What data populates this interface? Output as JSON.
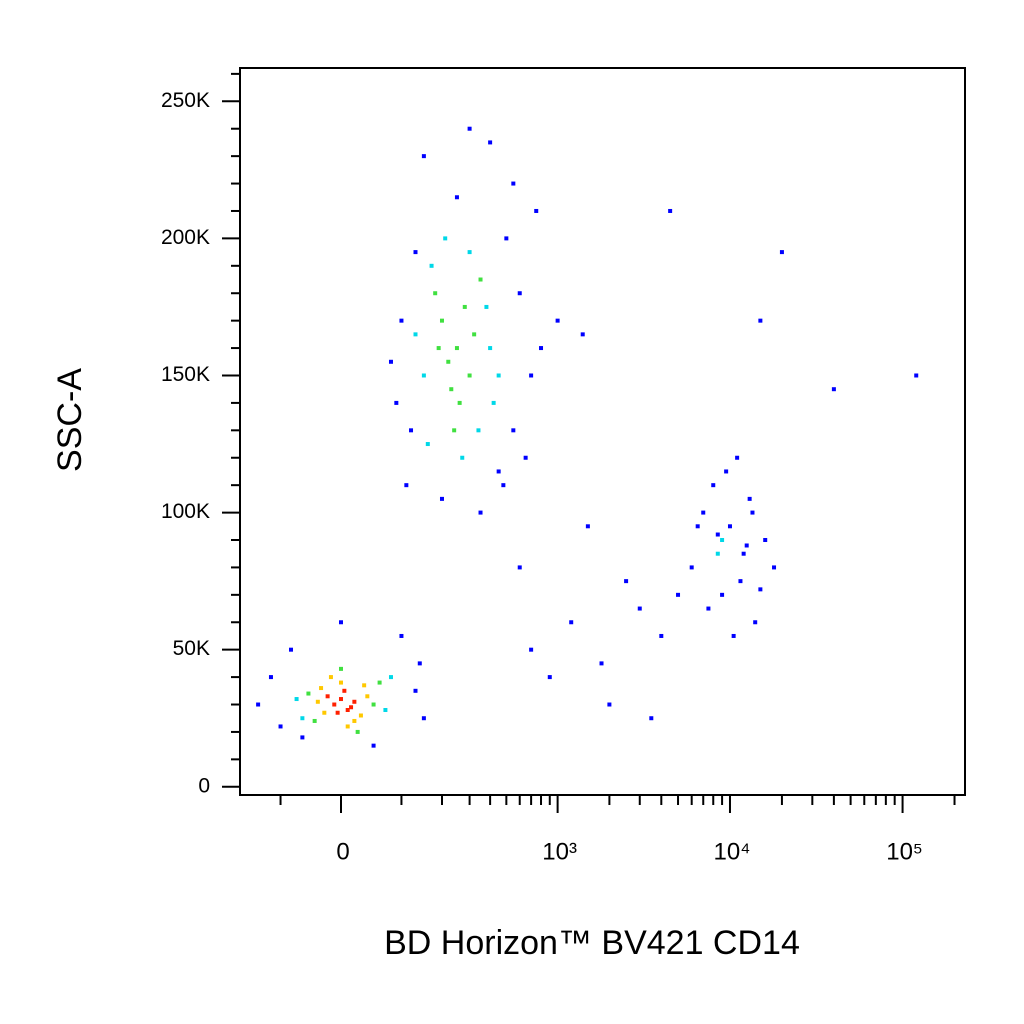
{
  "chart_data": {
    "type": "scatter",
    "xlabel": "BD Horizon™ BV421 CD14",
    "ylabel": "SSC-A",
    "xscale": "biexponential",
    "xlim": [
      -200,
      230000
    ],
    "ylim": [
      -3000,
      262144
    ],
    "xticks": [
      0,
      {
        "value": 1000,
        "label": "10³"
      },
      {
        "value": 10000,
        "label": "10⁴"
      },
      {
        "value": 100000,
        "label": "10⁵"
      }
    ],
    "xminorticks": [
      -100,
      100,
      200,
      300,
      400,
      500,
      600,
      700,
      800,
      900,
      2000,
      3000,
      4000,
      5000,
      6000,
      7000,
      8000,
      9000,
      20000,
      30000,
      40000,
      50000,
      60000,
      70000,
      80000,
      90000,
      200000
    ],
    "yticks": [
      0,
      {
        "value": 50000,
        "label": "50K"
      },
      {
        "value": 100000,
        "label": "100K"
      },
      {
        "value": 150000,
        "label": "150K"
      },
      {
        "value": 200000,
        "label": "200K"
      },
      {
        "value": 250000,
        "label": "250K"
      }
    ],
    "yminorticks": [
      10000,
      20000,
      30000,
      40000,
      60000,
      70000,
      80000,
      90000,
      110000,
      120000,
      130000,
      140000,
      160000,
      170000,
      180000,
      190000,
      210000,
      220000,
      230000,
      240000,
      260000
    ],
    "series": [
      {
        "color": "#0000ff",
        "x": [
          100,
          120,
          600,
          700,
          500,
          150,
          90,
          650,
          550,
          400,
          110,
          800,
          200,
          300,
          450,
          130,
          350,
          250,
          550,
          480,
          1000,
          1400,
          80,
          750,
          -120,
          -100,
          130,
          150,
          -80,
          100,
          -150,
          140,
          0,
          50,
          -60,
          1200,
          1800,
          2500,
          3000,
          4000,
          5000,
          600,
          900,
          2000,
          3500,
          1500,
          700,
          20000,
          40000,
          120000,
          4500,
          15000,
          6000,
          7000,
          8000,
          9000,
          10000,
          11000,
          12000,
          13000,
          14000,
          16000,
          18000,
          7500,
          9500,
          11500,
          13500,
          10500,
          8500,
          12500,
          6500,
          15000
        ],
        "values": [
          170000,
          130000,
          180000,
          150000,
          200000,
          230000,
          140000,
          120000,
          220000,
          235000,
          110000,
          160000,
          105000,
          240000,
          115000,
          195000,
          100000,
          215000,
          130000,
          110000,
          170000,
          165000,
          155000,
          210000,
          40000,
          22000,
          35000,
          25000,
          50000,
          55000,
          30000,
          45000,
          60000,
          15000,
          18000,
          60000,
          45000,
          75000,
          65000,
          55000,
          70000,
          80000,
          40000,
          30000,
          25000,
          95000,
          50000,
          195000,
          145000,
          150000,
          210000,
          170000,
          80000,
          100000,
          110000,
          70000,
          95000,
          120000,
          85000,
          105000,
          60000,
          90000,
          80000,
          65000,
          115000,
          75000,
          100000,
          55000,
          92000,
          88000,
          95000,
          72000
        ]
      },
      {
        "color": "#00d8e8",
        "x": [
          150,
          170,
          400,
          420,
          210,
          380,
          160,
          300,
          270,
          450,
          130,
          340,
          -70,
          80,
          -60,
          70,
          9000,
          8500
        ],
        "values": [
          150000,
          190000,
          160000,
          140000,
          200000,
          175000,
          125000,
          195000,
          120000,
          150000,
          165000,
          130000,
          32000,
          40000,
          25000,
          28000,
          90000,
          85000
        ]
      },
      {
        "color": "#40e040",
        "x": [
          -50,
          50,
          -40,
          60,
          0,
          25,
          200,
          250,
          300,
          180,
          230,
          280,
          320,
          220,
          260,
          350,
          190,
          240
        ],
        "values": [
          34000,
          30000,
          24000,
          38000,
          43000,
          20000,
          170000,
          160000,
          150000,
          180000,
          145000,
          175000,
          165000,
          155000,
          140000,
          185000,
          160000,
          130000
        ]
      },
      {
        "color": "#ffc800",
        "x": [
          -30,
          30,
          0,
          40,
          -25,
          20,
          -15,
          35,
          10,
          -35
        ],
        "values": [
          36000,
          26000,
          38000,
          33000,
          27000,
          24000,
          40000,
          37000,
          22000,
          31000
        ]
      },
      {
        "color": "#ff2000",
        "x": [
          -10,
          0,
          10,
          20,
          -20,
          5,
          15,
          -5
        ],
        "values": [
          30000,
          32000,
          28000,
          31000,
          33000,
          35000,
          29000,
          27000
        ]
      }
    ]
  }
}
